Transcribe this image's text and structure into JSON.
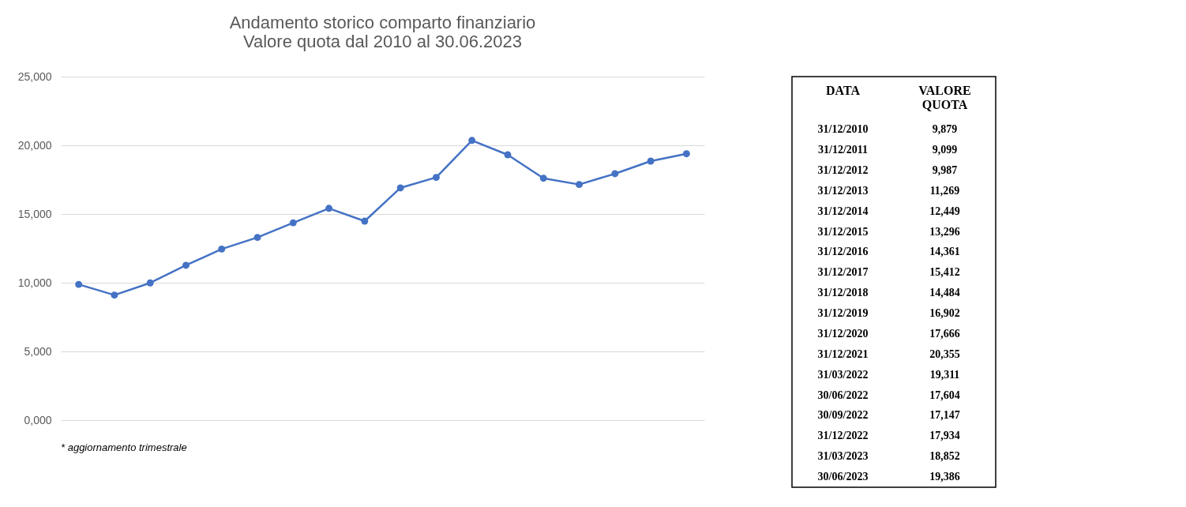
{
  "chart_data": [
    {
      "type": "line",
      "title": [
        "Andamento storico comparto finanziario",
        "Valore quota dal 2010 al 30.06.2023"
      ],
      "categories": [
        null,
        null,
        null,
        null,
        null,
        null,
        null,
        null,
        null,
        null,
        null,
        null,
        null,
        null,
        null,
        null,
        null,
        null
      ],
      "series": [
        {
          "color": "#4472c4",
          "values": [
            9879,
            9099,
            9987,
            11269,
            12449,
            13296,
            14361,
            15412,
            14484,
            16902,
            17666,
            20355,
            19311,
            17604,
            17147,
            17934,
            18852,
            19386
          ]
        }
      ],
      "ylim": [
        0,
        25000
      ],
      "yticks": [
        {
          "value": 0,
          "label": "0,000"
        },
        {
          "value": 5000,
          "label": "5,000"
        },
        {
          "value": 10000,
          "label": "10,000"
        },
        {
          "value": 15000,
          "label": "15,000"
        },
        {
          "value": 20000,
          "label": "20,000"
        },
        {
          "value": 25000,
          "label": "25,000"
        }
      ],
      "grid": "y",
      "marker": "circle",
      "line_style": "solid",
      "tick_labels": "y",
      "annotations": [
        "* aggiornamento trimestrale"
      ]
    },
    {
      "type": "other",
      "annotations": [
        "DATA",
        "VALORE QUOTA",
        "31/12/2010",
        "9,879",
        "31/12/2011",
        "9,099",
        "31/12/2012",
        "9,987",
        "31/12/2013",
        "11,269",
        "31/12/2014",
        "12,449",
        "31/12/2015",
        "13,296",
        "31/12/2016",
        "14,361",
        "31/12/2017",
        "15,412",
        "31/12/2018",
        "14,484",
        "31/12/2019",
        "16,902",
        "31/12/2020",
        "17,666",
        "31/12/2021",
        "20,355",
        "31/03/2022",
        "19,311",
        "30/06/2022",
        "17,604",
        "30/09/2022",
        "17,147",
        "31/12/2022",
        "17,934",
        "31/03/2023",
        "18,852",
        "30/06/2023",
        "19,386"
      ]
    }
  ]
}
